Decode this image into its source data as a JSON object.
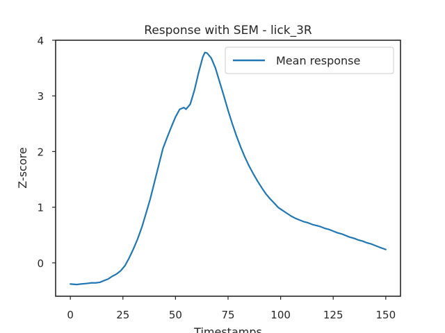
{
  "chart_data": {
    "type": "line",
    "title": "Response with SEM - lick_3R",
    "xlabel": "Timestamps",
    "ylabel": "Z-score",
    "xlim": [
      -7,
      157
    ],
    "ylim": [
      -0.6,
      4.0
    ],
    "xticks": [
      0,
      25,
      50,
      75,
      100,
      125,
      150
    ],
    "yticks": [
      0,
      1,
      2,
      3,
      4
    ],
    "grid": false,
    "legend": {
      "placement": "upper right",
      "entries": [
        "Mean response"
      ]
    },
    "colors": {
      "line": "#1f77b4",
      "axes": "#262626"
    },
    "series": [
      {
        "name": "Mean response",
        "x": [
          0,
          3,
          5,
          8,
          10,
          12,
          14,
          16,
          18,
          20,
          22,
          24,
          26,
          28,
          30,
          32,
          34,
          36,
          38,
          40,
          42,
          44,
          46,
          48,
          50,
          52,
          54,
          55,
          57,
          59,
          61,
          63,
          64,
          65,
          67,
          69,
          71,
          73,
          75,
          77,
          79,
          81,
          83,
          85,
          87,
          89,
          91,
          93,
          95,
          97,
          99,
          101,
          103,
          105,
          107,
          109,
          111,
          113,
          115,
          117,
          119,
          121,
          123,
          125,
          127,
          129,
          131,
          133,
          135,
          137,
          139,
          141,
          143,
          145,
          147,
          150
        ],
        "values": [
          -0.38,
          -0.39,
          -0.38,
          -0.37,
          -0.36,
          -0.36,
          -0.35,
          -0.32,
          -0.29,
          -0.24,
          -0.2,
          -0.14,
          -0.05,
          0.09,
          0.25,
          0.43,
          0.64,
          0.89,
          1.15,
          1.45,
          1.75,
          2.05,
          2.25,
          2.44,
          2.62,
          2.76,
          2.79,
          2.76,
          2.85,
          3.1,
          3.42,
          3.7,
          3.78,
          3.77,
          3.68,
          3.5,
          3.25,
          3.0,
          2.74,
          2.5,
          2.28,
          2.08,
          1.9,
          1.74,
          1.6,
          1.47,
          1.35,
          1.24,
          1.15,
          1.07,
          0.99,
          0.94,
          0.89,
          0.84,
          0.8,
          0.77,
          0.74,
          0.72,
          0.69,
          0.67,
          0.65,
          0.62,
          0.6,
          0.57,
          0.54,
          0.52,
          0.49,
          0.46,
          0.44,
          0.41,
          0.39,
          0.36,
          0.34,
          0.31,
          0.28,
          0.24
        ]
      }
    ]
  }
}
